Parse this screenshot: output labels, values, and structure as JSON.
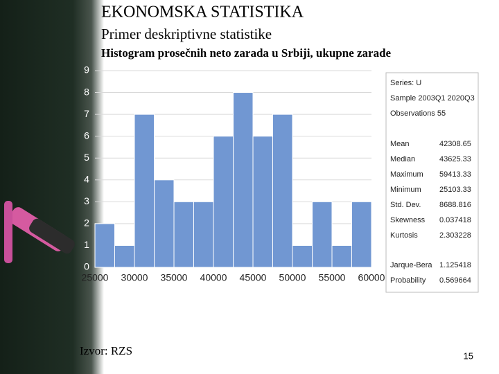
{
  "slide": {
    "title": "EKONOMSKA STATISTIKA",
    "subtitle": "Primer deskriptivne statistike",
    "source": "Izvor: RZS",
    "page_number": "15"
  },
  "chart_data": {
    "type": "histogram",
    "title": "Histogram prosečnih neto zarada u Srbiji, ukupne zarade",
    "bins": [
      25000,
      27500,
      30000,
      32500,
      35000,
      37500,
      40000,
      42500,
      45000,
      47500,
      50000,
      52500,
      55000,
      57500,
      60000
    ],
    "counts": [
      2,
      1,
      7,
      4,
      3,
      3,
      6,
      8,
      6,
      7,
      1,
      3,
      1,
      3
    ],
    "color": "#7197d2",
    "xlim": [
      25000,
      60000
    ],
    "xticks": [
      25000,
      30000,
      35000,
      40000,
      45000,
      50000,
      55000,
      60000
    ],
    "ylim": [
      0,
      9
    ],
    "yticks": [
      0,
      1,
      2,
      3,
      4,
      5,
      6,
      7,
      8,
      9
    ],
    "grid": true
  },
  "stats": {
    "header": [
      "Series: U",
      "Sample 2003Q1 2020Q3",
      "Observations 55"
    ],
    "rows": [
      [
        "Mean",
        42308.65
      ],
      [
        "Median",
        43625.33
      ],
      [
        "Maximum",
        59413.33
      ],
      [
        "Minimum",
        25103.33
      ],
      [
        "Std. Dev.",
        8688.816
      ],
      [
        "Skewness",
        0.037418
      ],
      [
        "Kurtosis",
        2.303228
      ]
    ],
    "test_rows": [
      [
        "Jarque-Bera",
        1.125418
      ],
      [
        "Probability",
        0.569664
      ]
    ]
  }
}
